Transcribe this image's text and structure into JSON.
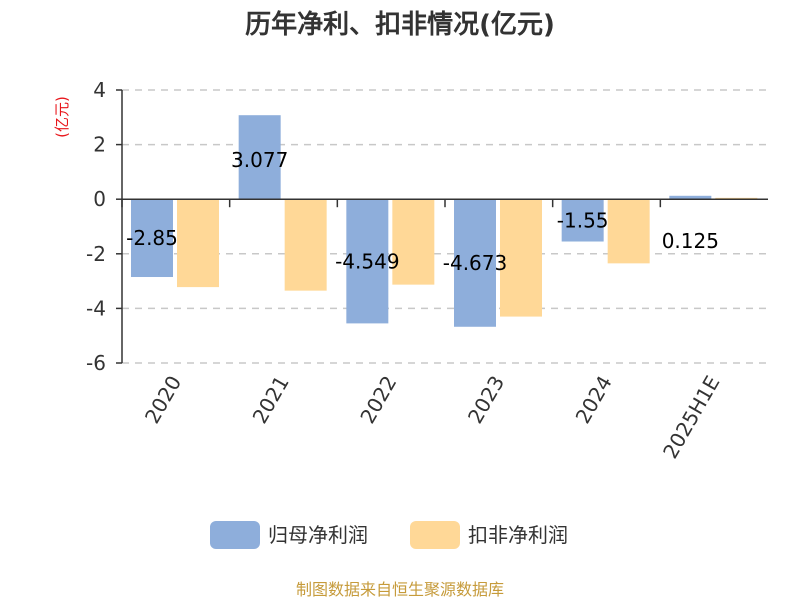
{
  "chart_data": {
    "type": "bar",
    "title": "历年净利、扣非情况(亿元)",
    "ylabel": "(亿元)",
    "categories": [
      "2020",
      "2021",
      "2022",
      "2023",
      "2024",
      "2025H1E"
    ],
    "series": [
      {
        "name": "归母净利润",
        "color": "#8eaedb",
        "values": [
          -2.85,
          3.077,
          -4.549,
          -4.673,
          -1.55,
          0.125
        ],
        "labels": [
          "-2.85",
          "3.077",
          "-4.549",
          "-4.673",
          "-1.55",
          "0.125"
        ]
      },
      {
        "name": "扣非净利润",
        "color": "#ffd897",
        "values": [
          -3.22,
          -3.35,
          -3.13,
          -4.3,
          -2.35,
          0.05
        ]
      }
    ],
    "ylim": [
      -6,
      4
    ],
    "yticks": [
      "4",
      "2",
      "0",
      "-2",
      "-4",
      "-6"
    ],
    "grid": true,
    "legend_position": "bottom"
  },
  "source": "制图数据来自恒生聚源数据库"
}
